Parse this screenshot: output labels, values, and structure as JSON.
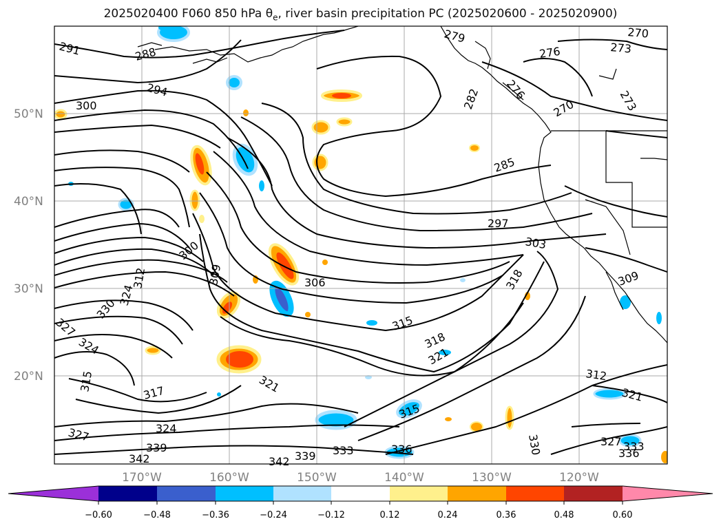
{
  "title": {
    "prefix": "2025020400 F060 850 hPa θ",
    "subscript": "e",
    "suffix": ", river basin precipitation PC (2025020600 - 2025020900)"
  },
  "map": {
    "lat_labels": [
      "50°N",
      "40°N",
      "30°N",
      "20°N"
    ],
    "lon_labels": [
      "170°W",
      "160°W",
      "150°W",
      "140°W",
      "130°W",
      "120°W"
    ],
    "contour_labels": [
      "291",
      "288",
      "294",
      "300",
      "279",
      "270",
      "273",
      "276",
      "276",
      "282",
      "270",
      "273",
      "285",
      "297",
      "303",
      "300",
      "309",
      "312",
      "306",
      "324",
      "330",
      "327",
      "324",
      "318",
      "315",
      "318",
      "321",
      "312",
      "315",
      "317",
      "321",
      "309",
      "327",
      "324",
      "339",
      "342",
      "342",
      "339",
      "333",
      "336",
      "315",
      "330",
      "327",
      "333",
      "336",
      "321"
    ]
  },
  "colorbar": {
    "colors": [
      "#9b30d9",
      "#00008b",
      "#3a5fcd",
      "#00bfff",
      "#b0e2ff",
      "#ffffff",
      "#fff08c",
      "#ffa500",
      "#ff4500",
      "#b22222",
      "#ff88aa"
    ],
    "ticks": [
      "−0.60",
      "−0.48",
      "−0.36",
      "−0.24",
      "−0.12",
      "0.12",
      "0.24",
      "0.36",
      "0.48",
      "0.60"
    ]
  }
}
